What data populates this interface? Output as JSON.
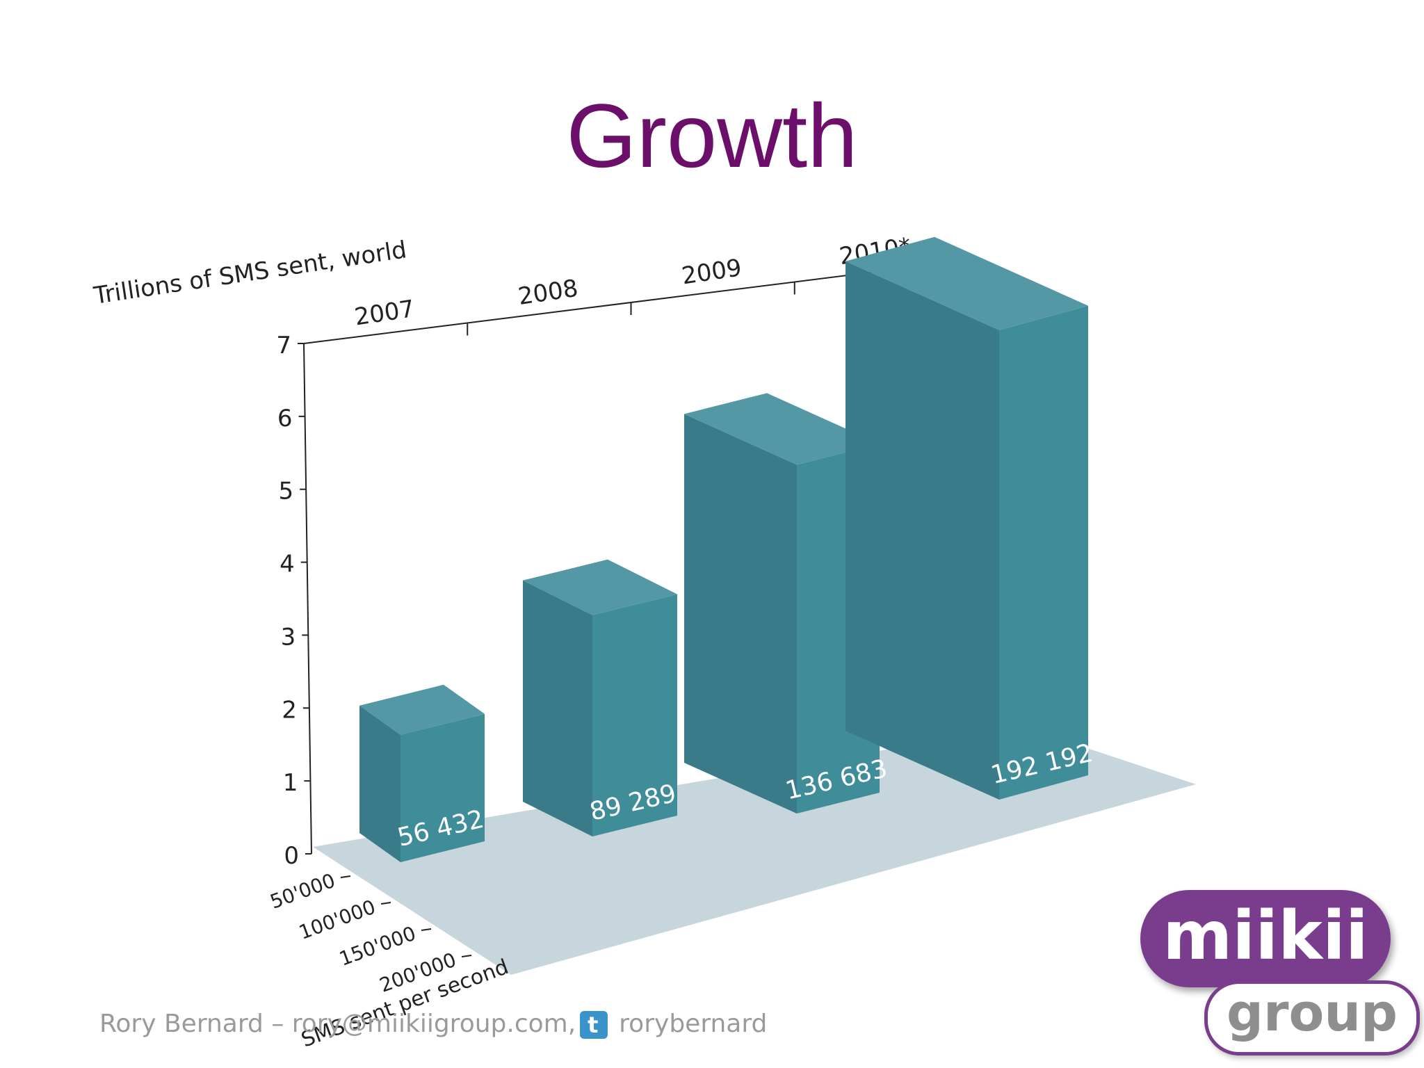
{
  "slide": {
    "title": "Growth",
    "footer": {
      "text_left": "Rory Bernard – rory@miikiigroup.com,",
      "twitter_icon": "twitter-icon",
      "text_right": "rorybernard"
    },
    "logo": {
      "top": "miikii",
      "bottom": "group"
    }
  },
  "colors": {
    "title": "#6b0f6b",
    "bar_front": "#3a7b89",
    "bar_side": "#408d9a",
    "bar_top": "#5498a5",
    "floor": "#c7d6dd"
  },
  "chart_data": {
    "type": "bar",
    "categories": [
      "2007",
      "2008",
      "2009",
      "2010*"
    ],
    "values": [
      1.9,
      3.3,
      5.2,
      7.0
    ],
    "bar_labels": [
      "56 432",
      "89 289",
      "136 683",
      "192 192"
    ],
    "ylabel": "Trillions of SMS sent, world",
    "ylim": [
      0,
      7
    ],
    "yticks": [
      0,
      1,
      2,
      3,
      4,
      5,
      6,
      7
    ],
    "depth_axis_label": "SMS sent per second",
    "depth_ticks": [
      "50'000",
      "100'000",
      "150'000",
      "200'000"
    ],
    "depth_values": [
      56432,
      89289,
      136683,
      192192
    ],
    "depth_lim": [
      0,
      250000
    ]
  }
}
